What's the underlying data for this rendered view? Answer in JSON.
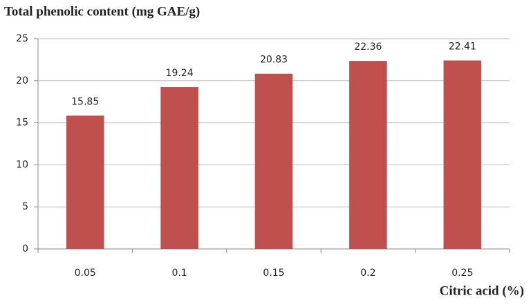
{
  "chart_data": {
    "type": "bar",
    "title": "Total phenolic content (mg GAE/g)",
    "xlabel": "Citric acid (%)",
    "categories": [
      "0.05",
      "0.1",
      "0.15",
      "0.2",
      "0.25"
    ],
    "values": [
      15.85,
      19.24,
      20.83,
      22.36,
      22.41
    ],
    "color": "#c0504d",
    "ylim": [
      0,
      25
    ],
    "yticks": [
      0,
      5,
      10,
      15,
      20,
      25
    ],
    "grid": true
  }
}
